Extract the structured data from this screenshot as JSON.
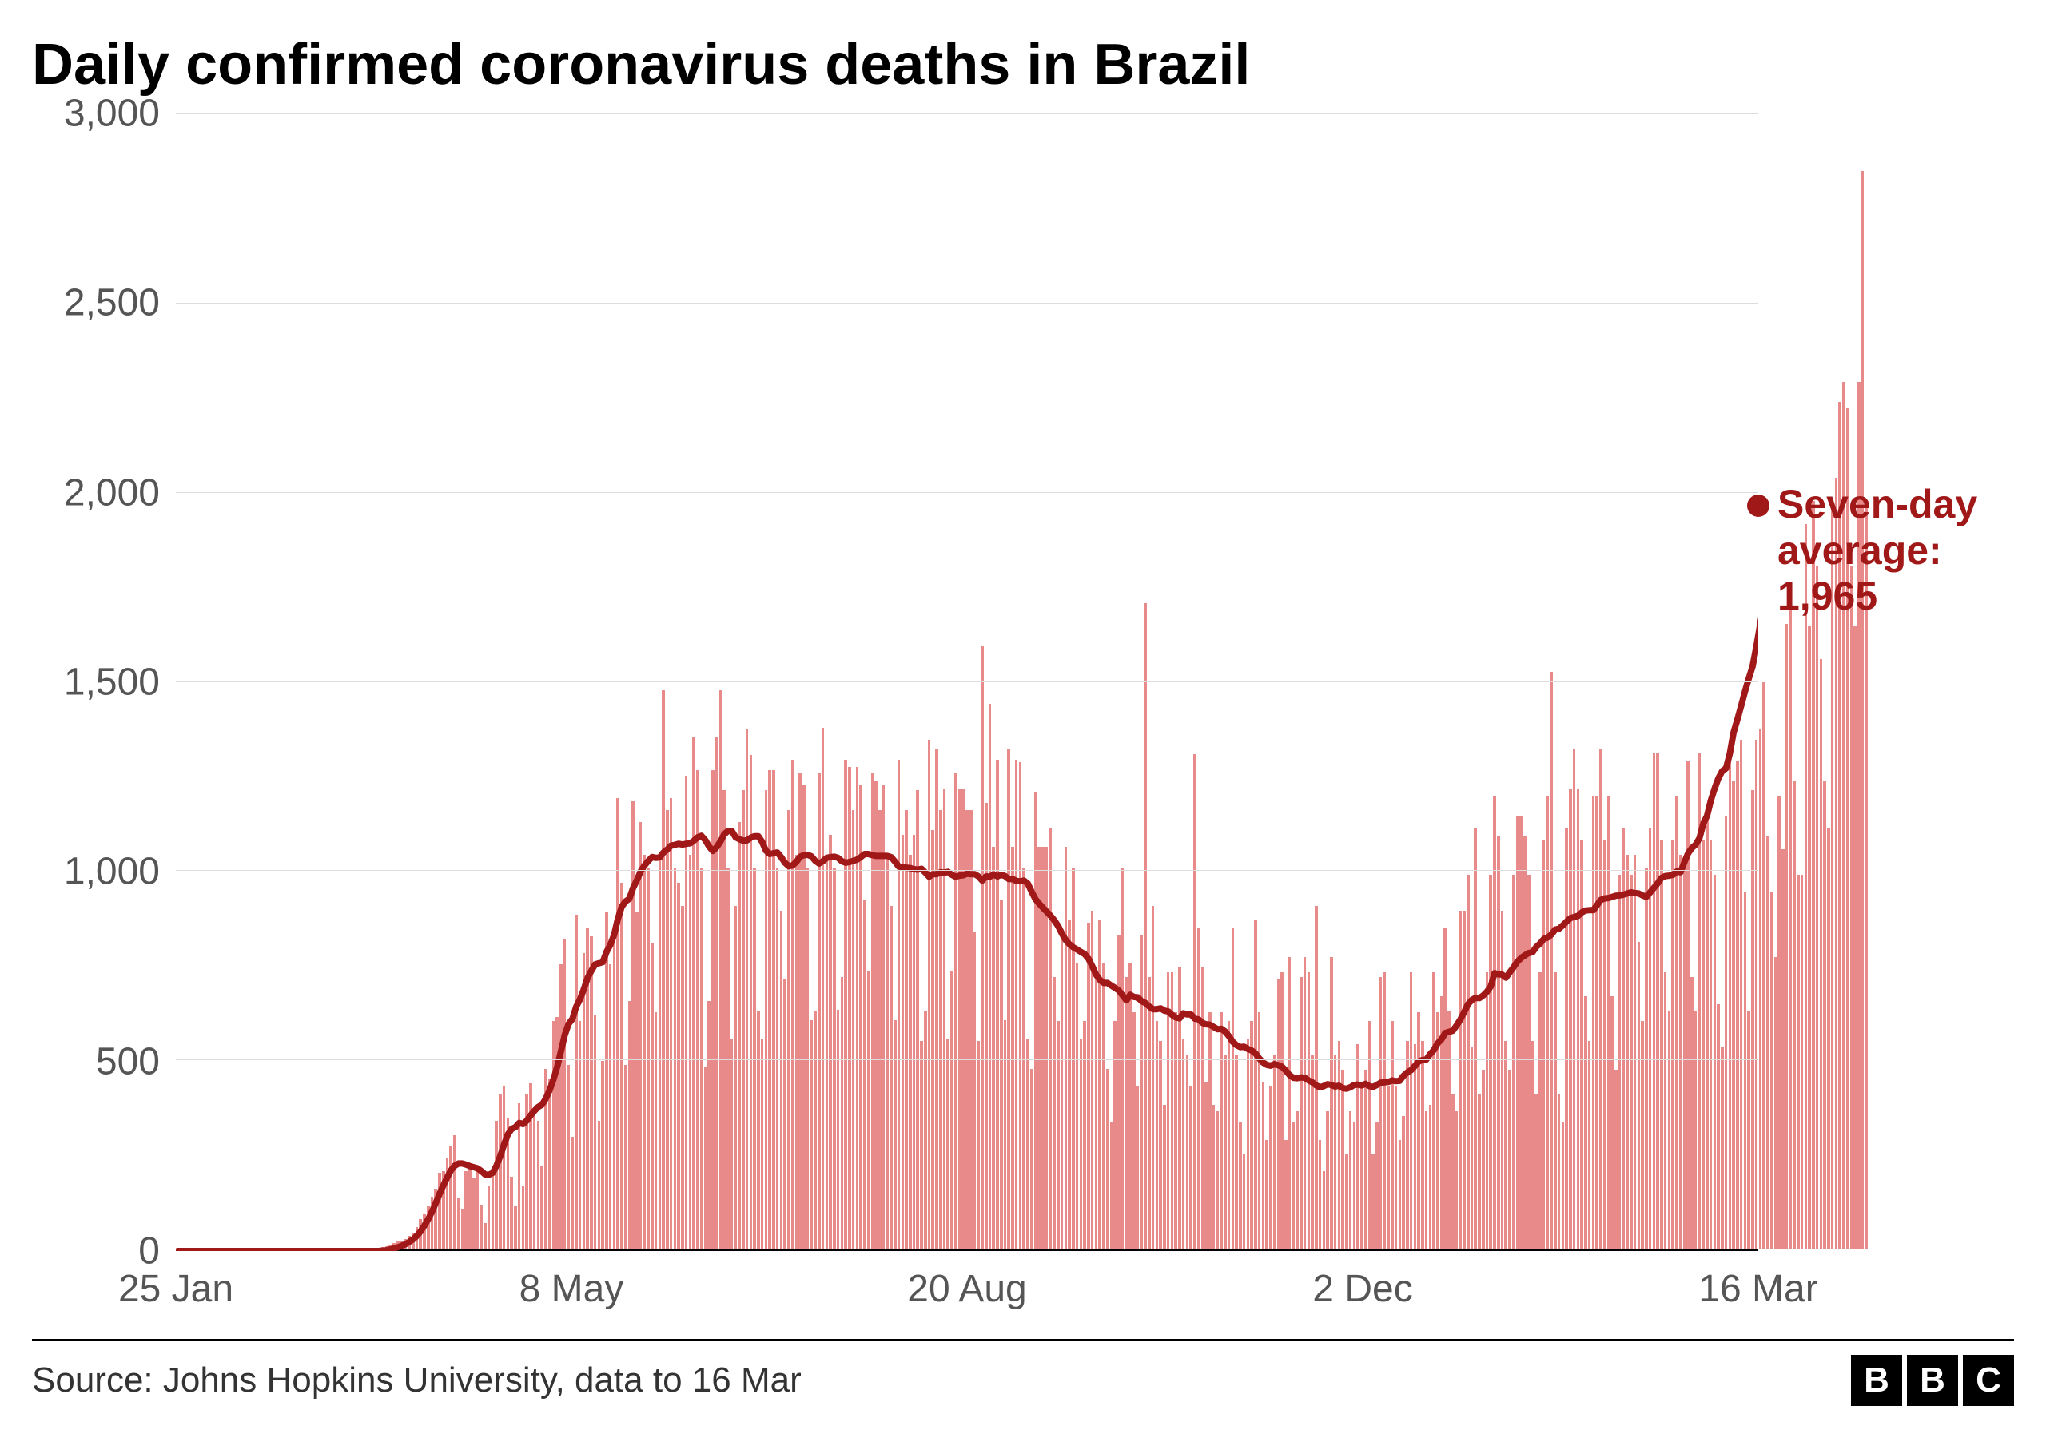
{
  "chart": {
    "type": "bar+line",
    "title": "Daily confirmed coronavirus deaths in Brazil",
    "title_fontsize": 72,
    "title_color": "#000000",
    "background_color": "#ffffff",
    "grid_color": "#dddddd",
    "axis_color": "#000000",
    "tick_label_color": "#555555",
    "tick_fontsize": 48,
    "bar_color": "#e88a8a",
    "line_color": "#a01818",
    "line_width": 8,
    "annotation_color": "#a01818",
    "annotation_fontsize": 50,
    "end_dot_color": "#a01818",
    "end_dot_radius": 14,
    "ylim": [
      0,
      3000
    ],
    "y_ticks": [
      0,
      500,
      1000,
      1500,
      2000,
      2500,
      3000
    ],
    "y_tick_labels": [
      "0",
      "500",
      "1,000",
      "1,500",
      "2,000",
      "2,500",
      "3,000"
    ],
    "x_ticks": [
      {
        "pos": 0,
        "label": "25 Jan"
      },
      {
        "pos": 104,
        "label": "8 May"
      },
      {
        "pos": 208,
        "label": "20 Aug"
      },
      {
        "pos": 312,
        "label": "2 Dec"
      },
      {
        "pos": 416,
        "label": "16 Mar"
      }
    ],
    "n_points": 417,
    "annotation": {
      "line1": "Seven-day",
      "line2": "average:",
      "line3": "1,965",
      "y_value": 1965
    },
    "daily_values": [
      0,
      0,
      0,
      0,
      0,
      0,
      0,
      0,
      0,
      0,
      0,
      0,
      0,
      0,
      0,
      0,
      0,
      0,
      0,
      0,
      0,
      0,
      0,
      0,
      0,
      0,
      0,
      0,
      0,
      0,
      0,
      0,
      0,
      0,
      0,
      0,
      0,
      0,
      0,
      0,
      0,
      0,
      0,
      0,
      0,
      0,
      0,
      0,
      0,
      0,
      0,
      0,
      1,
      3,
      4,
      7,
      11,
      15,
      18,
      22,
      25,
      34,
      42,
      57,
      77,
      92,
      114,
      136,
      159,
      201,
      204,
      240,
      270,
      299,
      133,
      105,
      204,
      217,
      188,
      204,
      115,
      68,
      166,
      204,
      338,
      407,
      428,
      346,
      189,
      113,
      383,
      165,
      407,
      437,
      357,
      338,
      218,
      474,
      449,
      600,
      610,
      751,
      816,
      485,
      296,
      881,
      600,
      780,
      844,
      824,
      615,
      338,
      496,
      888,
      749,
      844,
      1188,
      965,
      485,
      653,
      1179,
      888,
      1124,
      1039,
      1005,
      807,
      623,
      1039,
      1473,
      1156,
      1188,
      1005,
      965,
      904,
      1247,
      1039,
      1349,
      1262,
      1005,
      480,
      653,
      1262,
      1349,
      1473,
      1209,
      1005,
      553,
      904,
      1124,
      1209,
      1372,
      1301,
      1005,
      627,
      552,
      1209,
      1262,
      1262,
      1005,
      892,
      712,
      1156,
      1290,
      1038,
      1254,
      1223,
      1005,
      602,
      627,
      1254,
      1374,
      1038,
      1091,
      1005,
      631,
      716,
      1290,
      1271,
      1156,
      1271,
      1223,
      921,
      733,
      1254,
      1233,
      1156,
      1223,
      1038,
      904,
      602,
      1290,
      1091,
      1156,
      1038,
      1091,
      1209,
      548,
      627,
      1341,
      1105,
      1316,
      1156,
      1212,
      553,
      733,
      1254,
      1212,
      1212,
      1156,
      1156,
      834,
      548,
      1591,
      1175,
      1437,
      1060,
      1290,
      921,
      602,
      1316,
      1060,
      1290,
      1283,
      1005,
      553,
      475,
      1204,
      1060,
      1060,
      1060,
      1109,
      716,
      601,
      829,
      1060,
      869,
      1005,
      752,
      553,
      601,
      859,
      892,
      730,
      869,
      752,
      475,
      333,
      601,
      829,
      1005,
      716,
      752,
      624,
      428,
      829,
      1702,
      716,
      904,
      601,
      548,
      380,
      730,
      730,
      624,
      742,
      553,
      513,
      428,
      1305,
      844,
      742,
      441,
      624,
      380,
      363,
      624,
      513,
      601,
      844,
      513,
      333,
      251,
      553,
      601,
      869,
      624,
      438,
      287,
      428,
      513,
      713,
      730,
      287,
      769,
      333,
      363,
      716,
      769,
      730,
      513,
      904,
      287,
      204,
      363,
      769,
      513,
      548,
      472,
      251,
      363,
      333,
      540,
      438,
      472,
      601,
      251,
      333,
      716,
      730,
      428,
      601,
      428,
      287,
      349,
      548,
      730,
      540,
      624,
      548,
      363,
      380,
      730,
      624,
      665,
      844,
      627,
      408,
      363,
      892,
      892,
      987,
      530,
      1111,
      408,
      472,
      730,
      987,
      1192,
      1089,
      892,
      548,
      472,
      987,
      1140,
      1140,
      1089,
      987,
      548,
      408,
      730,
      1079,
      1192,
      1521,
      730,
      408,
      333,
      1111,
      1214,
      1316,
      1214,
      1079,
      665,
      548,
      1192,
      1192,
      1316,
      1079,
      1192,
      665,
      472,
      987,
      1111,
      1038,
      987,
      1038,
      808,
      601,
      1005,
      1111,
      1306,
      1306,
      1079,
      730,
      627,
      1079,
      1192,
      1038,
      1005,
      1288,
      716,
      627,
      1306,
      1079,
      1140,
      1079,
      987,
      645,
      530,
      1140,
      1341,
      1233,
      1288,
      1341,
      942,
      627,
      1209,
      1341,
      1371,
      1493,
      1089,
      942,
      769,
      1192,
      1054,
      1647,
      1699,
      1233,
      987,
      987,
      1910,
      1641,
      1972,
      1800,
      1555,
      1233,
      1111,
      1954,
      2032,
      2233,
      2286,
      2216,
      1800,
      1641,
      2286,
      2841,
      1954
    ],
    "avg_values": [
      0,
      0,
      0,
      0,
      0,
      0,
      0,
      0,
      0,
      0,
      0,
      0,
      0,
      0,
      0,
      0,
      0,
      0,
      0,
      0,
      0,
      0,
      0,
      0,
      0,
      0,
      0,
      0,
      0,
      0,
      0,
      0,
      0,
      0,
      0,
      0,
      0,
      0,
      0,
      0,
      0,
      0,
      0,
      0,
      0,
      0,
      0,
      0,
      0,
      0,
      0,
      0,
      0,
      0,
      1,
      2,
      4,
      7,
      10,
      14,
      18,
      24,
      31,
      40,
      52,
      67,
      84,
      104,
      127,
      151,
      173,
      194,
      213,
      225,
      231,
      231,
      228,
      224,
      221,
      218,
      211,
      202,
      201,
      206,
      225,
      251,
      281,
      308,
      322,
      327,
      338,
      335,
      344,
      358,
      370,
      380,
      386,
      402,
      424,
      452,
      486,
      527,
      570,
      599,
      612,
      644,
      664,
      690,
      720,
      739,
      756,
      759,
      762,
      789,
      808,
      834,
      877,
      908,
      922,
      929,
      958,
      978,
      1002,
      1017,
      1029,
      1039,
      1037,
      1038,
      1051,
      1059,
      1069,
      1071,
      1074,
      1072,
      1074,
      1075,
      1082,
      1091,
      1095,
      1084,
      1067,
      1055,
      1065,
      1080,
      1099,
      1108,
      1108,
      1091,
      1086,
      1082,
      1083,
      1090,
      1094,
      1094,
      1079,
      1056,
      1047,
      1049,
      1051,
      1039,
      1024,
      1015,
      1017,
      1026,
      1040,
      1044,
      1045,
      1041,
      1029,
      1022,
      1028,
      1037,
      1039,
      1040,
      1037,
      1028,
      1024,
      1026,
      1029,
      1032,
      1039,
      1047,
      1047,
      1044,
      1042,
      1042,
      1042,
      1042,
      1039,
      1027,
      1014,
      1012,
      1011,
      1010,
      1007,
      1006,
      1008,
      998,
      987,
      994,
      994,
      999,
      998,
      1000,
      992,
      987,
      990,
      991,
      995,
      994,
      994,
      988,
      977,
      988,
      987,
      993,
      988,
      992,
      989,
      981,
      981,
      976,
      975,
      977,
      969,
      948,
      928,
      916,
      905,
      895,
      884,
      872,
      857,
      837,
      820,
      809,
      801,
      795,
      789,
      783,
      771,
      751,
      729,
      715,
      707,
      707,
      700,
      694,
      687,
      674,
      661,
      676,
      670,
      669,
      659,
      654,
      645,
      638,
      638,
      640,
      634,
      632,
      623,
      616,
      614,
      627,
      624,
      624,
      613,
      611,
      602,
      598,
      597,
      591,
      585,
      586,
      579,
      567,
      552,
      543,
      538,
      539,
      533,
      529,
      521,
      508,
      497,
      491,
      489,
      493,
      490,
      486,
      476,
      464,
      457,
      456,
      458,
      457,
      450,
      445,
      437,
      432,
      435,
      440,
      438,
      434,
      436,
      430,
      428,
      432,
      438,
      439,
      437,
      441,
      435,
      433,
      438,
      444,
      445,
      446,
      450,
      448,
      449,
      462,
      471,
      477,
      488,
      500,
      504,
      505,
      519,
      530,
      548,
      558,
      575,
      578,
      581,
      595,
      611,
      630,
      651,
      662,
      668,
      667,
      674,
      684,
      698,
      733,
      730,
      729,
      721,
      735,
      748,
      763,
      773,
      780,
      786,
      788,
      802,
      811,
      823,
      827,
      835,
      848,
      850,
      859,
      869,
      878,
      881,
      884,
      893,
      898,
      899,
      899,
      912,
      926,
      930,
      931,
      934,
      937,
      938,
      940,
      943,
      946,
      944,
      943,
      938,
      934,
      946,
      958,
      970,
      984,
      989,
      990,
      992,
      1001,
      999,
      1025,
      1049,
      1063,
      1072,
      1089,
      1127,
      1148,
      1188,
      1220,
      1247,
      1266,
      1273,
      1312,
      1368,
      1402,
      1438,
      1476,
      1510,
      1542,
      1594,
      1653,
      1711,
      1761,
      1805,
      1847,
      1887,
      1919,
      1965
    ]
  },
  "footer": {
    "source": "Source: Johns Hopkins University, data to 16 Mar",
    "logo_letters": [
      "B",
      "B",
      "C"
    ]
  }
}
